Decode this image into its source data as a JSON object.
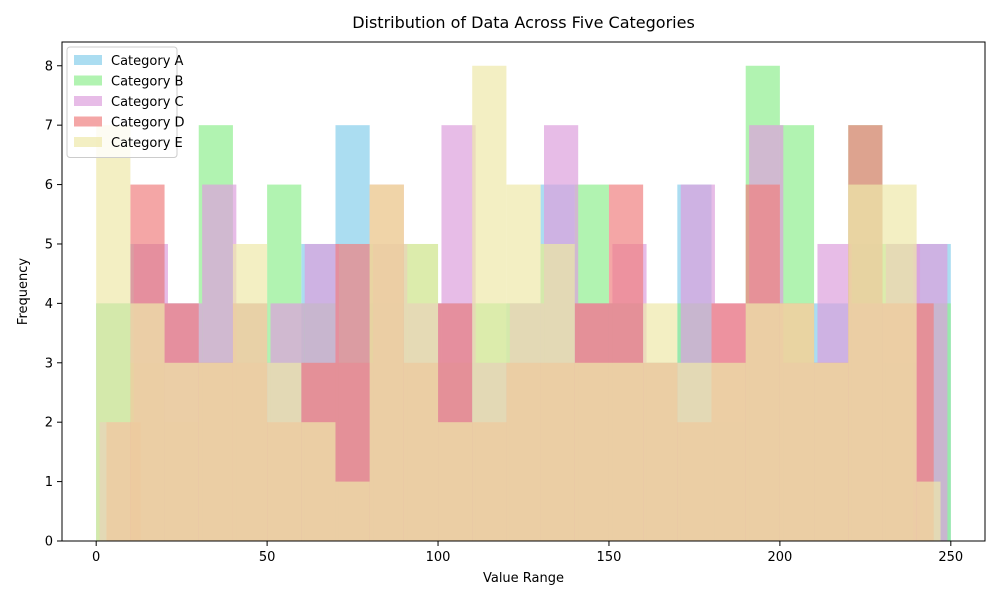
{
  "chart_data": {
    "type": "bar",
    "subtype": "overlapping-histogram",
    "title": "Distribution of Data Across Five Categories",
    "xlabel": "Value Range",
    "ylabel": "Frequency",
    "xlim": [
      -10,
      260
    ],
    "ylim": [
      0,
      8.4
    ],
    "xticks": [
      0,
      50,
      100,
      150,
      200,
      250
    ],
    "yticks": [
      0,
      1,
      2,
      3,
      4,
      5,
      6,
      7,
      8
    ],
    "legend_position": "top-left",
    "grid": false,
    "bar_alpha": 0.7,
    "series": [
      {
        "name": "Category A",
        "color": "#87CEEB",
        "bins": [
          [
            0,
            10,
            4
          ],
          [
            10,
            20,
            5
          ],
          [
            20,
            30,
            4
          ],
          [
            30,
            40,
            3
          ],
          [
            40,
            50,
            4
          ],
          [
            50,
            60,
            3
          ],
          [
            60,
            70,
            5
          ],
          [
            70,
            80,
            7
          ],
          [
            80,
            90,
            4
          ],
          [
            90,
            100,
            3
          ],
          [
            100,
            110,
            4
          ],
          [
            110,
            120,
            3
          ],
          [
            120,
            130,
            4
          ],
          [
            130,
            140,
            6
          ],
          [
            140,
            150,
            4
          ],
          [
            150,
            160,
            4
          ],
          [
            160,
            170,
            3
          ],
          [
            170,
            180,
            6
          ],
          [
            180,
            190,
            2
          ],
          [
            190,
            200,
            4
          ],
          [
            200,
            210,
            3
          ],
          [
            210,
            220,
            4
          ],
          [
            220,
            230,
            5
          ],
          [
            230,
            240,
            3
          ],
          [
            240,
            250,
            5
          ]
        ]
      },
      {
        "name": "Category B",
        "color": "#90EE90",
        "bins": [
          [
            0,
            10,
            4
          ],
          [
            10,
            20,
            3
          ],
          [
            20,
            30,
            2
          ],
          [
            30,
            40,
            7
          ],
          [
            40,
            50,
            3
          ],
          [
            50,
            60,
            6
          ],
          [
            60,
            70,
            4
          ],
          [
            70,
            80,
            3
          ],
          [
            80,
            90,
            5
          ],
          [
            90,
            100,
            5
          ],
          [
            100,
            110,
            3
          ],
          [
            110,
            120,
            4
          ],
          [
            120,
            130,
            4
          ],
          [
            130,
            140,
            5
          ],
          [
            140,
            150,
            6
          ],
          [
            150,
            160,
            4
          ],
          [
            160,
            170,
            3
          ],
          [
            170,
            180,
            4
          ],
          [
            180,
            190,
            3
          ],
          [
            190,
            200,
            8
          ],
          [
            200,
            210,
            7
          ],
          [
            210,
            220,
            3
          ],
          [
            220,
            230,
            7
          ],
          [
            230,
            240,
            5
          ],
          [
            240,
            250,
            4
          ]
        ]
      },
      {
        "name": "Category C",
        "color": "#DDA0DD",
        "bins": [
          [
            1,
            11,
            2
          ],
          [
            11,
            21,
            5
          ],
          [
            21,
            31,
            4
          ],
          [
            31,
            41,
            6
          ],
          [
            41,
            51,
            3
          ],
          [
            51,
            61,
            4
          ],
          [
            61,
            71,
            5
          ],
          [
            71,
            81,
            3
          ],
          [
            81,
            91,
            5
          ],
          [
            91,
            101,
            4
          ],
          [
            101,
            111,
            7
          ],
          [
            111,
            121,
            3
          ],
          [
            121,
            131,
            4
          ],
          [
            131,
            141,
            7
          ],
          [
            141,
            151,
            4
          ],
          [
            151,
            161,
            5
          ],
          [
            161,
            171,
            3
          ],
          [
            171,
            181,
            6
          ],
          [
            181,
            191,
            4
          ],
          [
            191,
            201,
            7
          ],
          [
            201,
            211,
            3
          ],
          [
            211,
            221,
            5
          ],
          [
            221,
            231,
            4
          ],
          [
            231,
            241,
            5
          ],
          [
            239,
            249,
            5
          ]
        ]
      },
      {
        "name": "Category D",
        "color": "#F08080",
        "bins": [
          [
            3,
            13,
            2
          ],
          [
            10,
            20,
            6
          ],
          [
            20,
            30,
            4
          ],
          [
            30,
            40,
            3
          ],
          [
            40,
            50,
            4
          ],
          [
            50,
            60,
            2
          ],
          [
            60,
            70,
            3
          ],
          [
            70,
            80,
            5
          ],
          [
            80,
            90,
            6
          ],
          [
            90,
            100,
            3
          ],
          [
            100,
            110,
            4
          ],
          [
            110,
            120,
            2
          ],
          [
            120,
            130,
            3
          ],
          [
            130,
            140,
            3
          ],
          [
            140,
            150,
            4
          ],
          [
            150,
            160,
            6
          ],
          [
            160,
            170,
            3
          ],
          [
            170,
            180,
            2
          ],
          [
            180,
            190,
            4
          ],
          [
            190,
            200,
            6
          ],
          [
            200,
            210,
            4
          ],
          [
            210,
            220,
            3
          ],
          [
            220,
            230,
            7
          ],
          [
            230,
            240,
            4
          ],
          [
            240,
            245,
            4
          ]
        ]
      },
      {
        "name": "Category E",
        "color": "#EEE8AA",
        "bins": [
          [
            0,
            10,
            7
          ],
          [
            10,
            20,
            4
          ],
          [
            20,
            30,
            3
          ],
          [
            30,
            40,
            3
          ],
          [
            40,
            50,
            5
          ],
          [
            50,
            60,
            3
          ],
          [
            60,
            70,
            2
          ],
          [
            70,
            80,
            1
          ],
          [
            80,
            90,
            6
          ],
          [
            90,
            100,
            5
          ],
          [
            100,
            110,
            2
          ],
          [
            110,
            120,
            8
          ],
          [
            120,
            130,
            6
          ],
          [
            130,
            140,
            5
          ],
          [
            140,
            150,
            3
          ],
          [
            150,
            160,
            3
          ],
          [
            160,
            170,
            4
          ],
          [
            170,
            180,
            3
          ],
          [
            180,
            190,
            3
          ],
          [
            190,
            200,
            4
          ],
          [
            200,
            210,
            4
          ],
          [
            210,
            220,
            3
          ],
          [
            220,
            230,
            6
          ],
          [
            230,
            240,
            6
          ],
          [
            240,
            247,
            1
          ]
        ]
      }
    ]
  }
}
